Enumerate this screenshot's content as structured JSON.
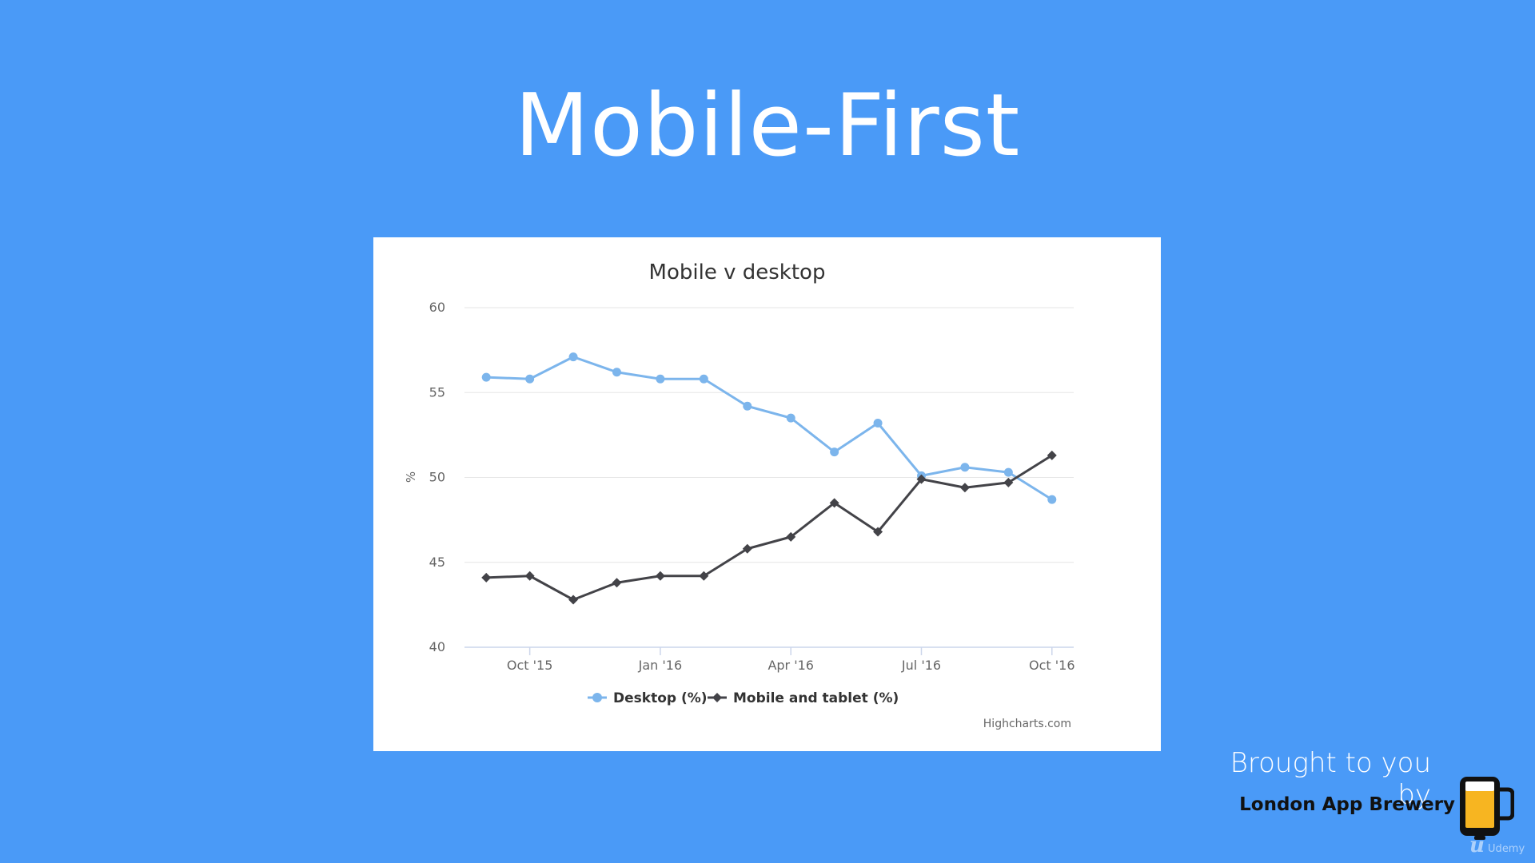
{
  "slide": {
    "title": "Mobile-First",
    "brought_by": "Brought to you by",
    "brand": "London App Brewery",
    "platform": "Udemy"
  },
  "chart_data": {
    "type": "line",
    "title": "Mobile v desktop",
    "ylabel": "%",
    "ylim": [
      40,
      60
    ],
    "yticks": [
      40,
      45,
      50,
      55,
      60
    ],
    "grid": true,
    "legend_position": "bottom-center",
    "credits": "Highcharts.com",
    "x": [
      "Sep '15",
      "Oct '15",
      "Nov '15",
      "Dec '15",
      "Jan '16",
      "Feb '16",
      "Mar '16",
      "Apr '16",
      "May '16",
      "Jun '16",
      "Jul '16",
      "Aug '16",
      "Sep '16",
      "Oct '16"
    ],
    "xtick_labels": [
      "",
      "Oct '15",
      "",
      "",
      "Jan '16",
      "",
      "",
      "Apr '16",
      "",
      "",
      "Jul '16",
      "",
      "",
      "Oct '16"
    ],
    "series": [
      {
        "name": "Desktop (%)",
        "color": "#7cb5ec",
        "marker": "circle",
        "values": [
          55.9,
          55.8,
          57.1,
          56.2,
          55.8,
          55.8,
          54.2,
          53.5,
          51.5,
          53.2,
          50.1,
          50.6,
          50.3,
          48.7
        ]
      },
      {
        "name": "Mobile and tablet (%)",
        "color": "#434348",
        "marker": "diamond",
        "values": [
          44.1,
          44.2,
          42.8,
          43.8,
          44.2,
          44.2,
          45.8,
          46.5,
          48.5,
          46.8,
          49.9,
          49.4,
          49.7,
          51.3
        ]
      }
    ]
  }
}
